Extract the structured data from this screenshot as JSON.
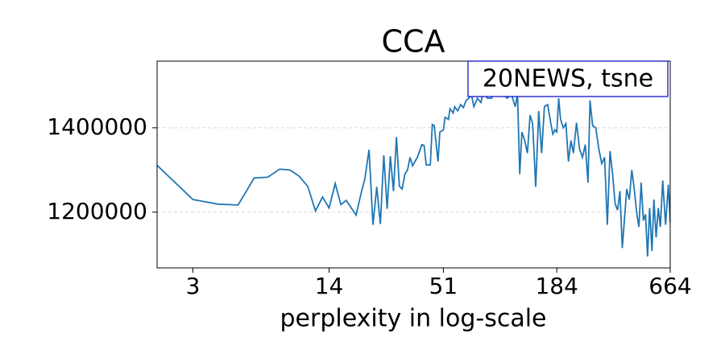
{
  "chart_data": {
    "type": "line",
    "title": "CCA",
    "xlabel": "perplexity in log-scale",
    "annotation": "20NEWS, tsne",
    "xscale": "log",
    "grid": true,
    "annotation_color": "#0000cc",
    "xlim": [
      2,
      664
    ],
    "xticks": [
      3,
      14,
      51,
      184,
      664
    ],
    "ylim": [
      1068000,
      1558000
    ],
    "yticks": [
      1200000,
      1400000
    ],
    "x": [
      2,
      3,
      4,
      5,
      6,
      7,
      8,
      9,
      10,
      11,
      12,
      13,
      14,
      15,
      16,
      17,
      18,
      19,
      20,
      21,
      22,
      23,
      24,
      25,
      26,
      27,
      28,
      29,
      30,
      31,
      32,
      33,
      34,
      35,
      36,
      38,
      40,
      41,
      42,
      44,
      45,
      46,
      48,
      49,
      51,
      52,
      54,
      55,
      57,
      58,
      60,
      62,
      64,
      66,
      68,
      70,
      72,
      75,
      78,
      80,
      84,
      88,
      92,
      96,
      100,
      105,
      110,
      115,
      118,
      121,
      124,
      128,
      132,
      136,
      140,
      145,
      150,
      155,
      160,
      166,
      172,
      176,
      180,
      184,
      188,
      192,
      198,
      204,
      210,
      216,
      222,
      230,
      238,
      246,
      254,
      262,
      268,
      276,
      286,
      296,
      306,
      316,
      326,
      336,
      346,
      356,
      366,
      376,
      386,
      396,
      406,
      418,
      430,
      442,
      454,
      466,
      478,
      490,
      502,
      514,
      526,
      540,
      552,
      566,
      580,
      594,
      610,
      630,
      650,
      664
    ],
    "series": [
      {
        "name": "CCA",
        "color": "#1f77b4",
        "values": [
          1311000,
          1230000,
          1219000,
          1217000,
          1281000,
          1283000,
          1302000,
          1300000,
          1285000,
          1261000,
          1203000,
          1236000,
          1210000,
          1268000,
          1218000,
          1228000,
          1210000,
          1193000,
          1240000,
          1280000,
          1348000,
          1170000,
          1260000,
          1172000,
          1335000,
          1208000,
          1333000,
          1250000,
          1378000,
          1262000,
          1255000,
          1290000,
          1300000,
          1330000,
          1310000,
          1330000,
          1360000,
          1358000,
          1312000,
          1312000,
          1408000,
          1405000,
          1320000,
          1390000,
          1395000,
          1425000,
          1420000,
          1445000,
          1435000,
          1450000,
          1440000,
          1455000,
          1448000,
          1465000,
          1470000,
          1480000,
          1450000,
          1470000,
          1460000,
          1485000,
          1470000,
          1470000,
          1490000,
          1475000,
          1480000,
          1470000,
          1480000,
          1450000,
          1480000,
          1290000,
          1390000,
          1370000,
          1340000,
          1430000,
          1410000,
          1260000,
          1440000,
          1340000,
          1450000,
          1455000,
          1410000,
          1385000,
          1395000,
          1390000,
          1470000,
          1420000,
          1400000,
          1410000,
          1320000,
          1370000,
          1340000,
          1412000,
          1350000,
          1330000,
          1360000,
          1270000,
          1465000,
          1405000,
          1400000,
          1350000,
          1315000,
          1330000,
          1170000,
          1345000,
          1290000,
          1220000,
          1205000,
          1250000,
          1115000,
          1185000,
          1255000,
          1230000,
          1300000,
          1255000,
          1200000,
          1165000,
          1270000,
          1180000,
          1195000,
          1095000,
          1210000,
          1108000,
          1230000,
          1140000,
          1210000,
          1165000,
          1275000,
          1170000,
          1265000,
          1175000
        ]
      }
    ]
  }
}
